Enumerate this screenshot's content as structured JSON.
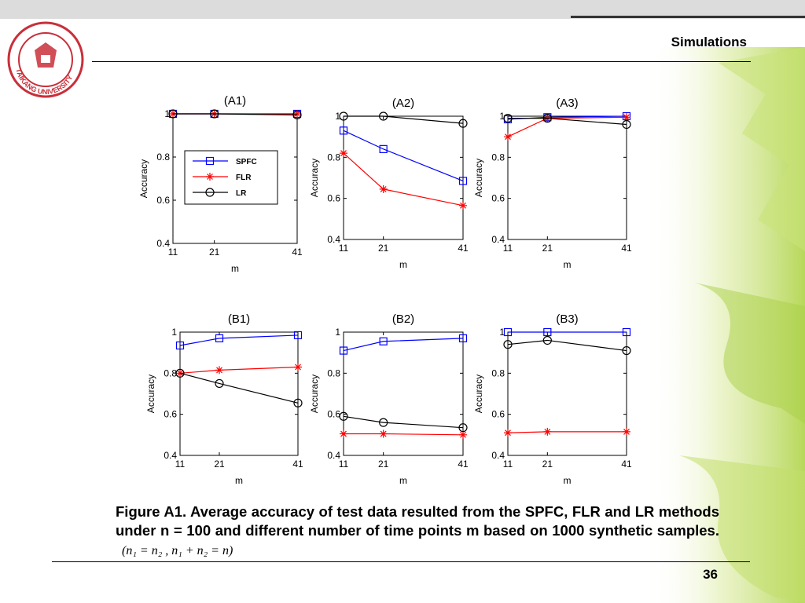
{
  "header": {
    "title": "Simulations"
  },
  "logo": {
    "text": "TAIKANG UNIVERSITY"
  },
  "caption": {
    "text": "Figure A1. Average accuracy of test data resulted from the SPFC, FLR and LR methods under n = 100 and different number of time points m based on 1000 synthetic samples.",
    "formula": "(n₁ = n₂ , n₁ + n₂ = n)"
  },
  "footer": {
    "page_number": "36"
  },
  "legend": [
    {
      "name": "SPFC",
      "color": "#0000ff",
      "marker": "square"
    },
    {
      "name": "FLR",
      "color": "#ff0000",
      "marker": "star"
    },
    {
      "name": "LR",
      "color": "#000000",
      "marker": "circle"
    }
  ],
  "chart_data": [
    {
      "type": "line",
      "title": "(A1)",
      "xlabel": "m",
      "ylabel": "Accuracy",
      "x": [
        11,
        21,
        41
      ],
      "ylim": [
        0.4,
        1
      ],
      "yticks": [
        "0.4",
        "0.6",
        "0.8",
        "1"
      ],
      "legend_position": "middle-left",
      "series": [
        {
          "name": "SPFC",
          "values": [
            1.0,
            1.0,
            1.0
          ]
        },
        {
          "name": "FLR",
          "values": [
            1.0,
            1.0,
            1.0
          ]
        },
        {
          "name": "LR",
          "values": [
            1.0,
            1.0,
            0.995
          ]
        }
      ]
    },
    {
      "type": "line",
      "title": "(A2)",
      "xlabel": "m",
      "ylabel": "Accuracy",
      "x": [
        11,
        21,
        41
      ],
      "ylim": [
        0.4,
        1
      ],
      "yticks": [
        "0.4",
        "0.6",
        "0.8",
        "1"
      ],
      "series": [
        {
          "name": "SPFC",
          "values": [
            0.93,
            0.84,
            0.685
          ]
        },
        {
          "name": "FLR",
          "values": [
            0.82,
            0.645,
            0.565
          ]
        },
        {
          "name": "LR",
          "values": [
            1.0,
            1.0,
            0.965
          ]
        }
      ]
    },
    {
      "type": "line",
      "title": "(A3)",
      "xlabel": "m",
      "ylabel": "Accuracy",
      "x": [
        11,
        21,
        41
      ],
      "ylim": [
        0.4,
        1
      ],
      "yticks": [
        "0.4",
        "0.6",
        "0.8",
        "1"
      ],
      "series": [
        {
          "name": "SPFC",
          "values": [
            0.985,
            0.995,
            1.0
          ]
        },
        {
          "name": "FLR",
          "values": [
            0.9,
            0.99,
            0.995
          ]
        },
        {
          "name": "LR",
          "values": [
            0.99,
            0.99,
            0.96
          ]
        }
      ]
    },
    {
      "type": "line",
      "title": "(B1)",
      "xlabel": "m",
      "ylabel": "Accuracy",
      "x": [
        11,
        21,
        41
      ],
      "ylim": [
        0.4,
        1
      ],
      "yticks": [
        "0.4",
        "0.6",
        "0.8",
        "1"
      ],
      "series": [
        {
          "name": "SPFC",
          "values": [
            0.935,
            0.97,
            0.985
          ]
        },
        {
          "name": "FLR",
          "values": [
            0.8,
            0.815,
            0.83
          ]
        },
        {
          "name": "LR",
          "values": [
            0.8,
            0.75,
            0.655
          ]
        }
      ]
    },
    {
      "type": "line",
      "title": "(B2)",
      "xlabel": "m",
      "ylabel": "Accuracy",
      "x": [
        11,
        21,
        41
      ],
      "ylim": [
        0.4,
        1
      ],
      "yticks": [
        "0.4",
        "0.6",
        "0.8",
        "1"
      ],
      "series": [
        {
          "name": "SPFC",
          "values": [
            0.91,
            0.955,
            0.97
          ]
        },
        {
          "name": "FLR",
          "values": [
            0.505,
            0.505,
            0.5
          ]
        },
        {
          "name": "LR",
          "values": [
            0.59,
            0.56,
            0.535
          ]
        }
      ]
    },
    {
      "type": "line",
      "title": "(B3)",
      "xlabel": "m",
      "ylabel": "Accuracy",
      "x": [
        11,
        21,
        41
      ],
      "ylim": [
        0.4,
        1
      ],
      "yticks": [
        "0.4",
        "0.6",
        "0.8",
        "1"
      ],
      "series": [
        {
          "name": "SPFC",
          "values": [
            1.0,
            1.0,
            1.0
          ]
        },
        {
          "name": "FLR",
          "values": [
            0.51,
            0.515,
            0.515
          ]
        },
        {
          "name": "LR",
          "values": [
            0.94,
            0.96,
            0.91
          ]
        }
      ]
    }
  ]
}
